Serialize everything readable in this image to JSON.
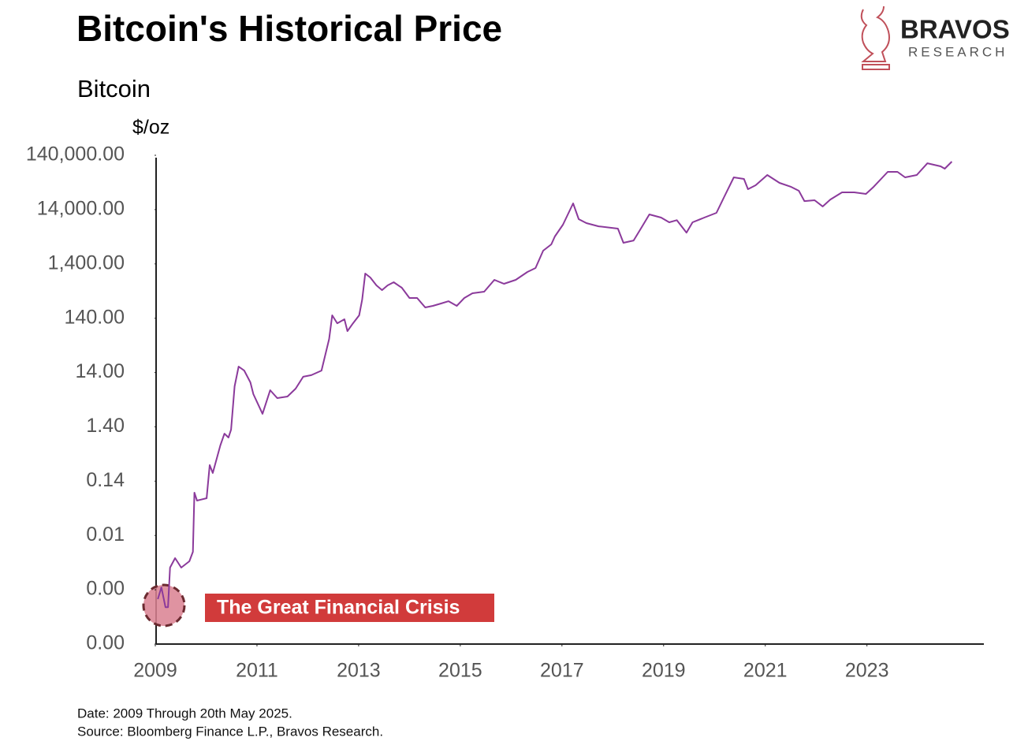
{
  "chart_data": {
    "type": "line",
    "title": "Bitcoin's Historical Price",
    "subtitle": "Bitcoin",
    "y_label": "$/oz",
    "annotation": "The Great Financial Crisis",
    "log_scale": true,
    "color": "#8b3a9b",
    "xlim": [
      2009,
      2025.3
    ],
    "xticks": [
      2009,
      2011,
      2013,
      2015,
      2017,
      2019,
      2021,
      2023
    ],
    "ylim": [
      0.00014,
      140000
    ],
    "yticks": [
      {
        "value": 0.00014,
        "label": "0.00"
      },
      {
        "value": 0.0014,
        "label": "0.00"
      },
      {
        "value": 0.014,
        "label": "0.01"
      },
      {
        "value": 0.14,
        "label": "0.14"
      },
      {
        "value": 1.4,
        "label": "1.40"
      },
      {
        "value": 14,
        "label": "14.00"
      },
      {
        "value": 140,
        "label": "140.00"
      },
      {
        "value": 1400,
        "label": "1,400.00"
      },
      {
        "value": 14000,
        "label": "14,000.00"
      },
      {
        "value": 140000,
        "label": "140,000.00"
      }
    ],
    "series": [
      {
        "name": "Bitcoin",
        "color": "#8b3a9b",
        "x": [
          2009.05,
          2009.12,
          2009.2,
          2009.25,
          2009.29,
          2009.39,
          2009.51,
          2009.67,
          2009.74,
          2009.77,
          2009.82,
          2010.01,
          2010.07,
          2010.13,
          2010.28,
          2010.36,
          2010.44,
          2010.49,
          2010.56,
          2010.64,
          2010.75,
          2010.87,
          2010.93,
          2011.11,
          2011.26,
          2011.4,
          2011.6,
          2011.76,
          2011.91,
          2012.07,
          2012.27,
          2012.42,
          2012.48,
          2012.58,
          2012.72,
          2012.78,
          2012.89,
          2013.01,
          2013.07,
          2013.13,
          2013.23,
          2013.35,
          2013.46,
          2013.57,
          2013.69,
          2013.85,
          2014.0,
          2014.15,
          2014.31,
          2014.46,
          2014.62,
          2014.77,
          2014.93,
          2015.08,
          2015.24,
          2015.47,
          2015.67,
          2015.86,
          2016.09,
          2016.32,
          2016.48,
          2016.63,
          2016.79,
          2016.86,
          2017.02,
          2017.22,
          2017.33,
          2017.48,
          2017.72,
          2018.1,
          2018.21,
          2018.41,
          2018.57,
          2018.72,
          2018.95,
          2019.11,
          2019.26,
          2019.45,
          2019.57,
          2019.8,
          2020.04,
          2020.19,
          2020.38,
          2020.58,
          2020.66,
          2020.81,
          2021.04,
          2021.28,
          2021.51,
          2021.66,
          2021.77,
          2021.97,
          2022.13,
          2022.28,
          2022.51,
          2022.75,
          2022.98,
          2023.13,
          2023.41,
          2023.6,
          2023.75,
          2023.98,
          2024.19,
          2024.45,
          2024.53,
          2024.67
        ],
        "values": [
          0.00094,
          0.00155,
          0.00067,
          0.00067,
          0.00358,
          0.00535,
          0.00358,
          0.00468,
          0.00698,
          0.0857,
          0.0614,
          0.0678,
          0.276,
          0.198,
          0.637,
          1.05,
          0.889,
          1.24,
          7.82,
          18.0,
          15.2,
          9.23,
          5.6,
          2.43,
          6.61,
          4.73,
          5.06,
          7.06,
          11.7,
          12.5,
          15.2,
          58.1,
          158,
          113,
          134,
          81.1,
          113,
          158,
          308,
          929,
          787,
          564,
          461,
          564,
          644,
          509,
          330,
          330,
          221,
          236,
          261,
          288,
          236,
          330,
          403,
          431,
          711,
          603,
          711,
          995,
          1175,
          2449,
          3206,
          4477,
          7380,
          18200,
          9330,
          7890,
          6900,
          6250,
          3430,
          3780,
          6680,
          11400,
          9980,
          8170,
          8930,
          5280,
          8170,
          9980,
          12200,
          23800,
          55000,
          51300,
          33300,
          39300,
          60700,
          43400,
          36700,
          31100,
          20100,
          20800,
          16000,
          21500,
          29100,
          29100,
          27200,
          36700,
          69300,
          69300,
          55000,
          60700,
          100000,
          87700,
          79300,
          107000
        ]
      }
    ]
  },
  "logo": {
    "name": "BRAVOS",
    "tagline": "RESEARCH"
  },
  "notes": [
    "Date: 2009 Through 20th May 2025.",
    "Source: Bloomberg Finance L.P., Bravos Research."
  ]
}
